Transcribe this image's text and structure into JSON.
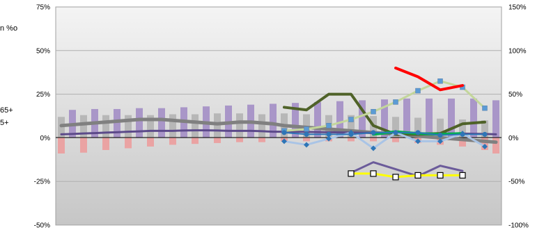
{
  "side_text": {
    "unit_fragment": "n %o",
    "age_fragment_1": "65+",
    "age_fragment_2": "5+"
  },
  "chart_data": {
    "type": "bar",
    "title": "",
    "xlabel": "",
    "ylabel": "",
    "ylim_left": [
      -50,
      75
    ],
    "ylim_right": [
      -100,
      150
    ],
    "yticks_left": [
      "75%",
      "50%",
      "25%",
      "0%",
      "-25%",
      "-50%"
    ],
    "yticks_right": [
      "150%",
      "100%",
      "50%",
      "0%",
      "-50%",
      "-100%"
    ],
    "grid": true,
    "plot_background": "gradient grey",
    "categories": 40,
    "bar_series": [
      {
        "axis": "left",
        "color": "#b7b7b7",
        "values": [
          12,
          null,
          13,
          null,
          13,
          null,
          13,
          null,
          13,
          null,
          13.5,
          null,
          13.5,
          null,
          14,
          null,
          14,
          null,
          13.5,
          null,
          14,
          null,
          13.5,
          null,
          13,
          null,
          13,
          null,
          12.5,
          null,
          12,
          null,
          11.5,
          null,
          11,
          null,
          10.5,
          null,
          10,
          null
        ]
      },
      {
        "axis": "left",
        "color": "#a996c8",
        "values": [
          null,
          16,
          null,
          16.5,
          null,
          16.5,
          null,
          17,
          null,
          17,
          null,
          17.5,
          null,
          18,
          null,
          18.5,
          null,
          19,
          null,
          19.5,
          null,
          20,
          null,
          20.5,
          null,
          21,
          null,
          21.5,
          null,
          22,
          null,
          22.5,
          null,
          22.5,
          null,
          22.5,
          null,
          22.5,
          null,
          21.5
        ]
      },
      {
        "axis": "left",
        "color": "#eaa3a3",
        "values": [
          -9,
          null,
          -8.5,
          null,
          -7,
          null,
          -6,
          null,
          -5,
          null,
          -4,
          null,
          -3.5,
          null,
          -3,
          null,
          -2.5,
          null,
          -2.5,
          null,
          -2,
          null,
          -2,
          null,
          -2,
          null,
          -2,
          null,
          -2,
          null,
          -2.5,
          null,
          -3,
          null,
          -4,
          null,
          -5,
          null,
          -7,
          -9
        ]
      }
    ],
    "line_series": [
      {
        "axis": "left",
        "color": "#808080",
        "width": 5,
        "values": [
          7,
          7.5,
          8,
          8.5,
          9,
          9.5,
          10,
          10.5,
          10.5,
          10.5,
          10,
          9.5,
          9,
          8.5,
          8,
          8.5,
          9,
          9,
          8.5,
          8,
          7,
          6.5,
          6,
          5.5,
          5,
          4.5,
          4,
          3.5,
          3,
          2.5,
          2,
          1.5,
          1,
          0.5,
          0,
          -0.5,
          -1,
          -1.5,
          -2,
          -2.5
        ]
      },
      {
        "axis": "left",
        "color": "#5c4a8a",
        "width": 3,
        "values": [
          2,
          2.2,
          2.5,
          2.7,
          3,
          3.2,
          3.5,
          3.7,
          4,
          4,
          4,
          4.2,
          4.3,
          4.3,
          4.2,
          4,
          4,
          4,
          3.8,
          3.5,
          3.5,
          3.5,
          3.4,
          3.3,
          3.2,
          3.1,
          3,
          2.9,
          2.8,
          2.7,
          2.6,
          2.6,
          2.5,
          2.5,
          2.5,
          2.5,
          2.4,
          2.3,
          2.2,
          2
        ]
      },
      {
        "axis": "right",
        "color": "#4f6228",
        "width": 4,
        "x_start": 20,
        "x_step": 2,
        "values": [
          35,
          32,
          50,
          50,
          14,
          4,
          4,
          5,
          16,
          18
        ]
      },
      {
        "axis": "right",
        "color": "#c3d69b",
        "width": 3,
        "marker": "square",
        "marker_color": "#5b9bd5",
        "x_start": 20,
        "x_step": 2,
        "values": [
          8,
          10,
          14,
          21,
          30,
          41,
          54,
          65,
          58,
          34
        ]
      },
      {
        "axis": "right",
        "color": "#a9c4e6",
        "width": 3,
        "marker": "diamond",
        "marker_color": "#2e75b6",
        "x_start": 20,
        "x_step": 2,
        "values": [
          -4,
          -8,
          -1,
          6,
          -12,
          6,
          -4,
          -4,
          5,
          -10
        ]
      },
      {
        "axis": "right",
        "color": "#ff0000",
        "width": 4,
        "x_start": 30,
        "x_step": 2,
        "values": [
          80,
          70,
          55,
          60
        ]
      },
      {
        "axis": "right",
        "color": "#00b050",
        "width": 4,
        "x_start": 28,
        "x_step": 2,
        "values": [
          4,
          7,
          5,
          4,
          5
        ]
      },
      {
        "axis": "right",
        "color": "#2e75b6",
        "width": 2,
        "marker": "circle",
        "marker_color": "#2e75b6",
        "x_start": 20,
        "x_step": 2,
        "values": [
          6,
          4,
          4,
          4,
          6,
          6,
          6,
          3,
          4,
          4
        ]
      },
      {
        "axis": "right",
        "color": "#6b5b9a",
        "width": 3,
        "x_start": 26,
        "x_step": 2,
        "values": [
          -40,
          -28,
          -36,
          -44,
          -32,
          -38
        ]
      },
      {
        "axis": "right",
        "color": "#ffff00",
        "width": 3,
        "marker": "open-square",
        "marker_color": "#000000",
        "x_start": 26,
        "x_step": 2,
        "values": [
          -41,
          -41,
          -45,
          -43,
          -43,
          -43
        ]
      }
    ]
  }
}
